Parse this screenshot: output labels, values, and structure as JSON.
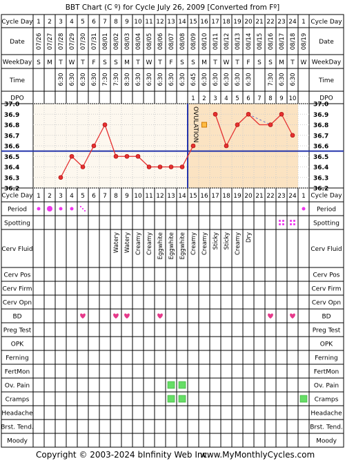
{
  "header": {
    "title": "BBT Chart (C º) for Cycle July 26, 2009  [Converted from Fº]"
  },
  "row_labels": {
    "cycle_day": "Cycle Day",
    "date": "Date",
    "weekday": "WeekDay",
    "time": "Time",
    "dpo": "DPO",
    "period": "Period",
    "spotting": "Spotting",
    "cerv_fluid": "Cerv Fluid",
    "cerv_pos": "Cerv Pos",
    "cerv_firm": "Cerv Firm",
    "cerv_opn": "Cerv Opn",
    "bd": "BD",
    "preg_test": "Preg Test",
    "opk": "OPK",
    "ferning": "Ferning",
    "fertmon": "FertMon",
    "ov_pain": "Ov. Pain",
    "cramps": "Cramps",
    "headache": "Headache",
    "brst_tend": "Brst. Tend.",
    "moody": "Moody"
  },
  "days": [
    "1",
    "2",
    "3",
    "4",
    "5",
    "6",
    "7",
    "8",
    "9",
    "10",
    "11",
    "12",
    "13",
    "14",
    "15",
    "16",
    "17",
    "18",
    "19",
    "20",
    "21",
    "22",
    "23",
    "24",
    "1"
  ],
  "dates": [
    "07/26",
    "07/27",
    "07/28",
    "07/29",
    "07/30",
    "07/31",
    "08/01",
    "08/02",
    "08/03",
    "08/04",
    "08/05",
    "08/06",
    "08/07",
    "08/08",
    "08/09",
    "08/10",
    "08/11",
    "08/12",
    "08/13",
    "08/14",
    "08/15",
    "08/16",
    "08/17",
    "08/18",
    "08/19"
  ],
  "weekdays": [
    "S",
    "M",
    "T",
    "W",
    "T",
    "F",
    "S",
    "S",
    "M",
    "T",
    "W",
    "T",
    "F",
    "S",
    "S",
    "M",
    "T",
    "W",
    "T",
    "F",
    "S",
    "S",
    "M",
    "T",
    "W"
  ],
  "times": [
    "",
    "",
    "6:30",
    "6:30",
    "6:30",
    "6:30",
    "7:30",
    "7:30",
    "8:30",
    "6:30",
    "6:30",
    "6:30",
    "6:30",
    "6:30",
    "6:45",
    "6:30",
    "6:30",
    "6:30",
    "6:30",
    "6:30",
    "",
    "7:30",
    "6:30",
    "6:30",
    ""
  ],
  "dpo": [
    "",
    "",
    "",
    "",
    "",
    "",
    "",
    "",
    "",
    "",
    "",
    "",
    "",
    "",
    "1",
    "2",
    "3",
    "4",
    "5",
    "6",
    "7",
    "8",
    "9",
    "10",
    ""
  ],
  "cerv_fluid": [
    "",
    "",
    "",
    "",
    "",
    "",
    "",
    "Watery",
    "Watery",
    "Creamy",
    "Creamy",
    "Eggwhite",
    "Eggwhite",
    "Eggwhite",
    "Creamy",
    "Creamy",
    "Sticky",
    "Sticky",
    "Creamy",
    "Dry",
    "",
    "",
    "",
    "",
    ""
  ],
  "period": [
    "light",
    "heavy",
    "light",
    "light",
    "spotting",
    "",
    "",
    "",
    "",
    "",
    "",
    "",
    "",
    "",
    "",
    "",
    "",
    "",
    "",
    "",
    "",
    "",
    "",
    "",
    "light"
  ],
  "spotting": [
    false,
    false,
    false,
    false,
    false,
    false,
    false,
    false,
    false,
    false,
    false,
    false,
    false,
    false,
    false,
    false,
    false,
    false,
    false,
    false,
    false,
    false,
    true,
    true,
    false
  ],
  "bd": [
    false,
    false,
    false,
    false,
    true,
    false,
    false,
    true,
    true,
    false,
    false,
    true,
    false,
    false,
    false,
    false,
    false,
    false,
    false,
    false,
    false,
    true,
    false,
    true,
    false
  ],
  "ov_pain": [
    false,
    false,
    false,
    false,
    false,
    false,
    false,
    false,
    false,
    false,
    false,
    false,
    true,
    true,
    false,
    false,
    false,
    false,
    false,
    false,
    false,
    false,
    false,
    false,
    false
  ],
  "cramps": [
    false,
    false,
    false,
    false,
    false,
    false,
    false,
    false,
    false,
    false,
    false,
    false,
    true,
    true,
    false,
    false,
    false,
    false,
    false,
    false,
    false,
    false,
    false,
    false,
    true
  ],
  "ovulation_label": "OVULATION",
  "footer": {
    "copyright": "Copyright © 2003-2024 bInfinity Web Inc.",
    "site": "www.MyMonthlyCycles.com"
  },
  "colors": {
    "temp_line": "#e53030",
    "temp_point": "#e53030",
    "coverline": "#2233aa",
    "ovulation_line": "#2233aa",
    "luteal_fill": "#fbe3c2",
    "period": "#ee33ee",
    "bd": "#e6398a",
    "symptom_square": "#66dd66",
    "grid_dot": "#cccccc"
  },
  "chart_data": {
    "type": "line",
    "title": "BBT Chart (C º) for Cycle July 26, 2009  [Converted from Fº]",
    "x": [
      1,
      2,
      3,
      4,
      5,
      6,
      7,
      8,
      9,
      10,
      11,
      12,
      13,
      14,
      15,
      16,
      17,
      18,
      19,
      20,
      21,
      22,
      23,
      24,
      25
    ],
    "ylim": [
      36.2,
      37.0
    ],
    "yticks": [
      "37.0",
      "36.9",
      "36.8",
      "36.7",
      "36.6",
      "36.5",
      "36.4",
      "36.3",
      "36.2"
    ],
    "series": [
      {
        "values": [
          null,
          null,
          36.3,
          36.5,
          36.4,
          36.6,
          36.8,
          36.5,
          36.5,
          36.5,
          36.4,
          36.4,
          36.4,
          36.4,
          36.6,
          36.8,
          36.9,
          36.6,
          36.8,
          36.9,
          36.8,
          36.8,
          36.9,
          36.7,
          null
        ],
        "marker": [
          "none",
          "none",
          "point",
          "point",
          "point",
          "point",
          "point",
          "point",
          "point",
          "point",
          "point",
          "point",
          "point",
          "point",
          "point",
          "open",
          "point",
          "point",
          "point",
          "point",
          "missing",
          "point",
          "point",
          "point",
          "none"
        ]
      }
    ],
    "coverline": 36.55,
    "ovulation_day": 14,
    "luteal_start_day": 15,
    "luteal_end_day": 24
  }
}
